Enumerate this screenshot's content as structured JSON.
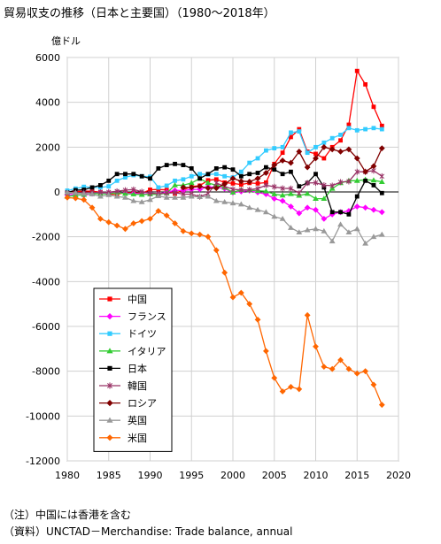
{
  "title": "貿易収支の推移（日本と主要国）（1980～2018年）",
  "notes": {
    "note": "（注）中国には香港を含む",
    "source": "（資料）UNCTAD－Merchandise: Trade balance, annual"
  },
  "chart_data": {
    "type": "line",
    "title": "貿易収支の推移（日本と主要国）（1980～2018年）",
    "ylabel": "億ドル",
    "xlabel": "",
    "xlim": [
      1980,
      2020
    ],
    "ylim": [
      -12000,
      6000
    ],
    "x_ticks": [
      1980,
      1985,
      1990,
      1995,
      2000,
      2005,
      2010,
      2015,
      2020
    ],
    "y_ticks": [
      6000,
      4000,
      2000,
      0,
      -2000,
      -4000,
      -6000,
      -8000,
      -10000,
      -12000
    ],
    "grid": true,
    "legend_position": "left, lower-middle",
    "x": [
      1980,
      1981,
      1982,
      1983,
      1984,
      1985,
      1986,
      1987,
      1988,
      1989,
      1990,
      1991,
      1992,
      1993,
      1994,
      1995,
      1996,
      1997,
      1998,
      1999,
      2000,
      2001,
      2002,
      2003,
      2004,
      2005,
      2006,
      2007,
      2008,
      2009,
      2010,
      2011,
      2012,
      2013,
      2014,
      2015,
      2016,
      2017,
      2018
    ],
    "series": [
      {
        "name": "中国",
        "color": "#ff0000",
        "marker": "square",
        "values": [
          -10,
          10,
          40,
          30,
          -10,
          -120,
          -100,
          -30,
          -40,
          -60,
          100,
          110,
          90,
          -80,
          100,
          240,
          280,
          520,
          560,
          420,
          380,
          330,
          400,
          380,
          420,
          1250,
          1750,
          2450,
          2800,
          1800,
          1700,
          1500,
          2000,
          2300,
          3000,
          5400,
          4800,
          3800,
          2950
        ]
      },
      {
        "name": "フランス",
        "color": "#ff00ff",
        "marker": "diamond",
        "values": [
          -130,
          -110,
          -150,
          -80,
          -40,
          -50,
          -20,
          -60,
          -70,
          -80,
          -100,
          -90,
          -10,
          70,
          60,
          110,
          120,
          230,
          200,
          150,
          -30,
          20,
          60,
          -20,
          -100,
          -300,
          -400,
          -650,
          -950,
          -700,
          -800,
          -1200,
          -1000,
          -900,
          -850,
          -650,
          -700,
          -800,
          -900
        ]
      },
      {
        "name": "ドイツ",
        "color": "#33ccff",
        "marker": "square",
        "values": [
          60,
          150,
          230,
          200,
          200,
          250,
          500,
          650,
          750,
          700,
          680,
          200,
          280,
          500,
          560,
          700,
          800,
          780,
          800,
          700,
          650,
          900,
          1300,
          1500,
          1850,
          1950,
          2000,
          2650,
          2700,
          1750,
          2000,
          2200,
          2400,
          2550,
          2850,
          2750,
          2800,
          2850,
          2800
        ]
      },
      {
        "name": "イタリア",
        "color": "#33cc33",
        "marker": "triangle",
        "values": [
          -200,
          -150,
          -120,
          -70,
          -80,
          -90,
          -20,
          -80,
          -100,
          -120,
          -100,
          -110,
          -50,
          300,
          300,
          400,
          600,
          400,
          300,
          200,
          -20,
          100,
          80,
          50,
          30,
          -100,
          -150,
          -90,
          -160,
          -80,
          -300,
          -300,
          150,
          400,
          500,
          500,
          550,
          520,
          450
        ]
      },
      {
        "name": "日本",
        "color": "#000000",
        "marker": "square",
        "values": [
          -30,
          80,
          100,
          200,
          300,
          500,
          800,
          800,
          800,
          700,
          600,
          1050,
          1200,
          1250,
          1200,
          1050,
          600,
          800,
          1050,
          1100,
          1000,
          700,
          800,
          850,
          1100,
          1000,
          800,
          900,
          250,
          400,
          800,
          200,
          -900,
          -900,
          -1000,
          -200,
          500,
          300,
          -50
        ]
      },
      {
        "name": "韓国",
        "color": "#993366",
        "marker": "star",
        "values": [
          -50,
          -40,
          -30,
          -20,
          -20,
          -10,
          30,
          80,
          110,
          10,
          -50,
          -80,
          -60,
          -30,
          -100,
          -100,
          -210,
          -80,
          400,
          250,
          120,
          90,
          100,
          150,
          300,
          230,
          160,
          150,
          -50,
          400,
          410,
          300,
          280,
          440,
          470,
          900,
          900,
          950,
          700
        ]
      },
      {
        "name": "ロシア",
        "color": "#800000",
        "marker": "diamond",
        "values": [
          null,
          null,
          null,
          null,
          null,
          null,
          null,
          null,
          null,
          null,
          null,
          null,
          null,
          null,
          200,
          200,
          250,
          170,
          170,
          360,
          600,
          480,
          460,
          600,
          850,
          1200,
          1400,
          1300,
          1800,
          1100,
          1500,
          2000,
          1900,
          1800,
          1900,
          1500,
          900,
          1150,
          1950
        ]
      },
      {
        "name": "英国",
        "color": "#999999",
        "marker": "triangle",
        "values": [
          -20,
          -40,
          -80,
          -100,
          -200,
          -130,
          -200,
          -250,
          -400,
          -450,
          -350,
          -180,
          -250,
          -250,
          -250,
          -200,
          -220,
          -200,
          -400,
          -450,
          -500,
          -550,
          -700,
          -800,
          -900,
          -1100,
          -1200,
          -1600,
          -1800,
          -1700,
          -1650,
          -1750,
          -2200,
          -1450,
          -1800,
          -1650,
          -2300,
          -2000,
          -1900
        ]
      },
      {
        "name": "米国",
        "color": "#ff6600",
        "marker": "diamond",
        "values": [
          -250,
          -280,
          -350,
          -700,
          -1200,
          -1350,
          -1500,
          -1650,
          -1400,
          -1300,
          -1200,
          -850,
          -1050,
          -1400,
          -1750,
          -1850,
          -1900,
          -2000,
          -2600,
          -3600,
          -4700,
          -4500,
          -5000,
          -5700,
          -7100,
          -8300,
          -8900,
          -8700,
          -8800,
          -5500,
          -6900,
          -7800,
          -7900,
          -7500,
          -7900,
          -8100,
          -8000,
          -8600,
          -9500
        ]
      }
    ]
  }
}
